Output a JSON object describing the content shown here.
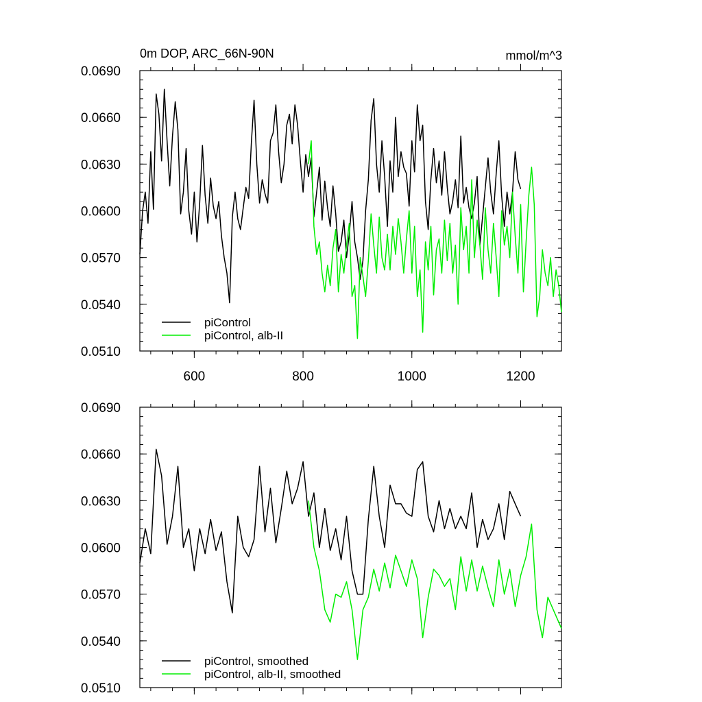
{
  "chart_data": [
    {
      "type": "line",
      "title": "0m DOP, ARC_66N-90N",
      "subtitle": "mmol/m^3",
      "xlabel": "",
      "ylabel": "",
      "xlim": [
        500,
        1275
      ],
      "ylim": [
        0.051,
        0.069
      ],
      "xticks": [
        600,
        800,
        1000,
        1200
      ],
      "xtick_labels": [
        "600",
        "800",
        "1000",
        "1200"
      ],
      "yticks": [
        0.051,
        0.054,
        0.057,
        0.06,
        0.063,
        0.066,
        0.069
      ],
      "ytick_labels": [
        "0.0510",
        "0.0540",
        "0.0570",
        "0.0600",
        "0.0630",
        "0.0660",
        "0.0690"
      ],
      "legend_position": "bottom-left",
      "series": [
        {
          "name": "piControl",
          "color": "#000000",
          "x": [
            500,
            505,
            510,
            515,
            520,
            525,
            530,
            535,
            540,
            545,
            550,
            555,
            560,
            565,
            570,
            575,
            580,
            585,
            590,
            595,
            600,
            605,
            610,
            615,
            620,
            625,
            630,
            635,
            640,
            645,
            650,
            655,
            660,
            665,
            670,
            675,
            680,
            685,
            690,
            695,
            700,
            705,
            710,
            715,
            720,
            725,
            730,
            735,
            740,
            745,
            750,
            755,
            760,
            765,
            770,
            775,
            780,
            785,
            790,
            795,
            800,
            805,
            810,
            815,
            820,
            825,
            830,
            835,
            840,
            845,
            850,
            855,
            860,
            865,
            870,
            875,
            880,
            885,
            890,
            895,
            900,
            905,
            910,
            915,
            920,
            925,
            930,
            935,
            940,
            945,
            950,
            955,
            960,
            965,
            970,
            975,
            980,
            985,
            990,
            995,
            1000,
            1005,
            1010,
            1015,
            1020,
            1025,
            1030,
            1035,
            1040,
            1045,
            1050,
            1055,
            1060,
            1065,
            1070,
            1075,
            1080,
            1085,
            1090,
            1095,
            1100,
            1105,
            1110,
            1115,
            1120,
            1125,
            1130,
            1135,
            1140,
            1145,
            1150,
            1155,
            1160,
            1165,
            1170,
            1175,
            1180,
            1185,
            1190,
            1195,
            1200
          ],
          "values": [
            0.0572,
            0.06,
            0.0612,
            0.0592,
            0.0638,
            0.0601,
            0.0675,
            0.0662,
            0.0632,
            0.0678,
            0.0645,
            0.0616,
            0.0648,
            0.067,
            0.0652,
            0.0598,
            0.0612,
            0.064,
            0.06,
            0.0585,
            0.0612,
            0.058,
            0.0605,
            0.0642,
            0.061,
            0.0592,
            0.0621,
            0.0603,
            0.0595,
            0.0606,
            0.0584,
            0.057,
            0.056,
            0.0541,
            0.0596,
            0.0612,
            0.0595,
            0.0588,
            0.0602,
            0.0615,
            0.0608,
            0.0644,
            0.0671,
            0.063,
            0.0605,
            0.062,
            0.0611,
            0.0605,
            0.0645,
            0.065,
            0.0668,
            0.0638,
            0.0618,
            0.063,
            0.0655,
            0.0662,
            0.0643,
            0.0668,
            0.0655,
            0.0632,
            0.0612,
            0.0636,
            0.0622,
            0.0634,
            0.0596,
            0.0612,
            0.0628,
            0.0594,
            0.0619,
            0.0602,
            0.059,
            0.0616,
            0.0598,
            0.0574,
            0.058,
            0.0594,
            0.057,
            0.0585,
            0.0606,
            0.058,
            0.057,
            0.0556,
            0.0568,
            0.06,
            0.062,
            0.0658,
            0.0672,
            0.063,
            0.0612,
            0.0645,
            0.0622,
            0.059,
            0.0632,
            0.0612,
            0.066,
            0.0622,
            0.0638,
            0.0628,
            0.0624,
            0.0603,
            0.0645,
            0.0625,
            0.0668,
            0.0645,
            0.0655,
            0.0606,
            0.0588,
            0.062,
            0.064,
            0.0618,
            0.0632,
            0.061,
            0.0638,
            0.0615,
            0.0598,
            0.0606,
            0.062,
            0.0602,
            0.0648,
            0.0605,
            0.0615,
            0.0602,
            0.0595,
            0.0605,
            0.0622,
            0.0578,
            0.0596,
            0.0615,
            0.0634,
            0.0612,
            0.0598,
            0.0624,
            0.0645,
            0.061,
            0.059,
            0.0612,
            0.0598,
            0.0612,
            0.0638,
            0.062,
            0.0614
          ]
        },
        {
          "name": "piControl, alb-II",
          "color": "#00ee00",
          "x": [
            810,
            815,
            820,
            825,
            830,
            835,
            840,
            845,
            850,
            855,
            860,
            865,
            870,
            875,
            880,
            885,
            890,
            895,
            900,
            905,
            910,
            915,
            920,
            925,
            930,
            935,
            940,
            945,
            950,
            955,
            960,
            965,
            970,
            975,
            980,
            985,
            990,
            995,
            1000,
            1005,
            1010,
            1015,
            1020,
            1025,
            1030,
            1035,
            1040,
            1045,
            1050,
            1055,
            1060,
            1065,
            1070,
            1075,
            1080,
            1085,
            1090,
            1095,
            1100,
            1105,
            1110,
            1115,
            1120,
            1125,
            1130,
            1135,
            1140,
            1145,
            1150,
            1155,
            1160,
            1165,
            1170,
            1175,
            1180,
            1185,
            1190,
            1195,
            1200,
            1205,
            1210,
            1215,
            1220,
            1225,
            1230,
            1235,
            1240,
            1245,
            1250,
            1255,
            1260,
            1265,
            1270,
            1275
          ],
          "values": [
            0.063,
            0.0645,
            0.059,
            0.0572,
            0.058,
            0.056,
            0.0548,
            0.0565,
            0.0552,
            0.0576,
            0.0588,
            0.0548,
            0.0572,
            0.056,
            0.0578,
            0.0592,
            0.0545,
            0.0552,
            0.0518,
            0.057,
            0.0558,
            0.0545,
            0.0568,
            0.0598,
            0.0578,
            0.056,
            0.0596,
            0.057,
            0.0562,
            0.0585,
            0.0562,
            0.059,
            0.0572,
            0.0595,
            0.058,
            0.056,
            0.0582,
            0.06,
            0.056,
            0.059,
            0.0545,
            0.0562,
            0.0522,
            0.058,
            0.0562,
            0.059,
            0.0546,
            0.0575,
            0.0582,
            0.056,
            0.0594,
            0.0568,
            0.0592,
            0.056,
            0.0578,
            0.054,
            0.0602,
            0.0575,
            0.059,
            0.056,
            0.062,
            0.057,
            0.0594,
            0.0578,
            0.0556,
            0.0602,
            0.0575,
            0.056,
            0.0592,
            0.057,
            0.0545,
            0.06,
            0.0578,
            0.059,
            0.057,
            0.0612,
            0.0584,
            0.056,
            0.0604,
            0.0548,
            0.058,
            0.061,
            0.0628,
            0.0604,
            0.0532,
            0.0545,
            0.0575,
            0.056,
            0.0552,
            0.057,
            0.0545,
            0.0562,
            0.0552,
            0.0535
          ]
        }
      ]
    },
    {
      "type": "line",
      "title": "",
      "xlabel": "",
      "ylabel": "",
      "xlim": [
        500,
        1275
      ],
      "ylim": [
        0.051,
        0.069
      ],
      "xticks": [
        600,
        800,
        1000,
        1200
      ],
      "yticks": [
        0.051,
        0.054,
        0.057,
        0.06,
        0.063,
        0.066,
        0.069
      ],
      "ytick_labels": [
        "0.0510",
        "0.0540",
        "0.0570",
        "0.0600",
        "0.0630",
        "0.0660",
        "0.0690"
      ],
      "legend_position": "bottom-left",
      "series": [
        {
          "name": "piControl, smoothed",
          "color": "#000000",
          "x": [
            500,
            510,
            520,
            530,
            540,
            550,
            560,
            570,
            580,
            590,
            600,
            610,
            620,
            630,
            640,
            650,
            660,
            670,
            680,
            690,
            700,
            710,
            720,
            730,
            740,
            750,
            760,
            770,
            780,
            790,
            800,
            810,
            820,
            830,
            840,
            850,
            860,
            870,
            880,
            890,
            900,
            910,
            920,
            930,
            940,
            950,
            960,
            970,
            980,
            990,
            1000,
            1010,
            1020,
            1030,
            1040,
            1050,
            1060,
            1070,
            1080,
            1090,
            1100,
            1110,
            1120,
            1130,
            1140,
            1150,
            1160,
            1170,
            1180,
            1190,
            1200
          ],
          "values": [
            0.059,
            0.0612,
            0.0596,
            0.0663,
            0.0646,
            0.0602,
            0.062,
            0.0652,
            0.06,
            0.0612,
            0.0585,
            0.0612,
            0.0596,
            0.0618,
            0.0598,
            0.061,
            0.0578,
            0.0558,
            0.062,
            0.06,
            0.0594,
            0.0605,
            0.0652,
            0.061,
            0.0638,
            0.0603,
            0.0625,
            0.0649,
            0.0628,
            0.0638,
            0.0655,
            0.062,
            0.0635,
            0.06,
            0.0625,
            0.0598,
            0.0612,
            0.0592,
            0.062,
            0.0585,
            0.057,
            0.057,
            0.0618,
            0.0652,
            0.062,
            0.06,
            0.064,
            0.0628,
            0.0628,
            0.0622,
            0.062,
            0.065,
            0.0655,
            0.062,
            0.061,
            0.063,
            0.0612,
            0.0625,
            0.0612,
            0.062,
            0.0612,
            0.0635,
            0.06,
            0.0618,
            0.0605,
            0.0612,
            0.0628,
            0.0605,
            0.0636,
            0.0628,
            0.062
          ]
        },
        {
          "name": "piControl, alb-II, smoothed",
          "color": "#00ee00",
          "x": [
            810,
            820,
            830,
            840,
            850,
            860,
            870,
            880,
            890,
            900,
            910,
            920,
            930,
            940,
            950,
            960,
            970,
            980,
            990,
            1000,
            1010,
            1020,
            1030,
            1040,
            1050,
            1060,
            1070,
            1080,
            1090,
            1100,
            1110,
            1120,
            1130,
            1140,
            1150,
            1160,
            1170,
            1180,
            1190,
            1200,
            1210,
            1220,
            1230,
            1240,
            1250,
            1260,
            1270,
            1275
          ],
          "values": [
            0.063,
            0.06,
            0.0585,
            0.056,
            0.0552,
            0.057,
            0.0568,
            0.0578,
            0.056,
            0.0528,
            0.056,
            0.0568,
            0.0586,
            0.0572,
            0.059,
            0.0574,
            0.0595,
            0.0585,
            0.0575,
            0.0592,
            0.058,
            0.0542,
            0.0568,
            0.0586,
            0.0582,
            0.0575,
            0.058,
            0.056,
            0.0594,
            0.0572,
            0.0592,
            0.0572,
            0.0588,
            0.0574,
            0.0562,
            0.0592,
            0.057,
            0.0586,
            0.0562,
            0.0582,
            0.0594,
            0.0615,
            0.056,
            0.0542,
            0.0568,
            0.056,
            0.0552,
            0.0548
          ]
        }
      ]
    }
  ]
}
